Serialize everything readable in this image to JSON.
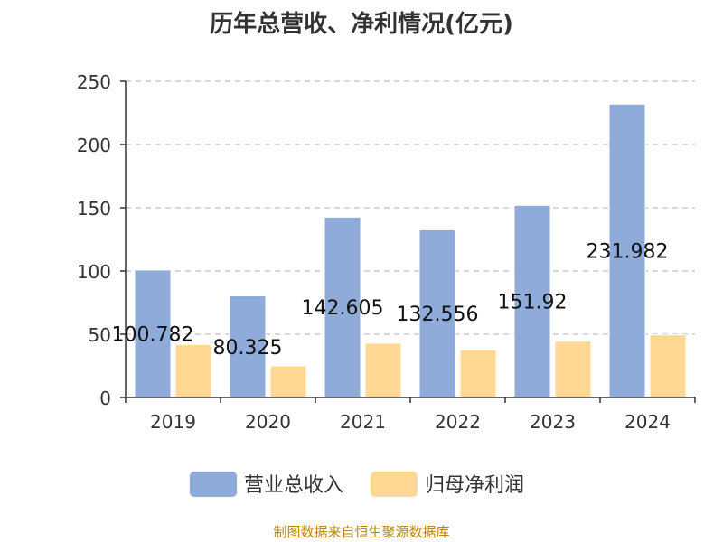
{
  "title": "历年总营收、净利情况(亿元)",
  "source": "制图数据来自恒生聚源数据库",
  "chart_data": {
    "type": "bar",
    "title": "历年总营收、净利情况(亿元)",
    "categories": [
      "2019",
      "2020",
      "2021",
      "2022",
      "2023",
      "2024"
    ],
    "ylim": [
      0,
      250
    ],
    "yticks": [
      "0",
      "50",
      "100",
      "150",
      "200",
      "250"
    ],
    "grid": true,
    "legend_position": "bottom",
    "series": [
      {
        "name": "营业总收入",
        "color": "#8eabd9",
        "values": [
          100.782,
          80.325,
          142.605,
          132.556,
          151.92,
          231.982
        ],
        "labels": [
          "100.782",
          "80.325",
          "142.605",
          "132.556",
          "151.92",
          "231.982"
        ]
      },
      {
        "name": "归母净利润",
        "color": "#ffd994",
        "values": [
          42,
          25,
          43,
          37.5,
          44.5,
          49.5
        ]
      }
    ]
  }
}
